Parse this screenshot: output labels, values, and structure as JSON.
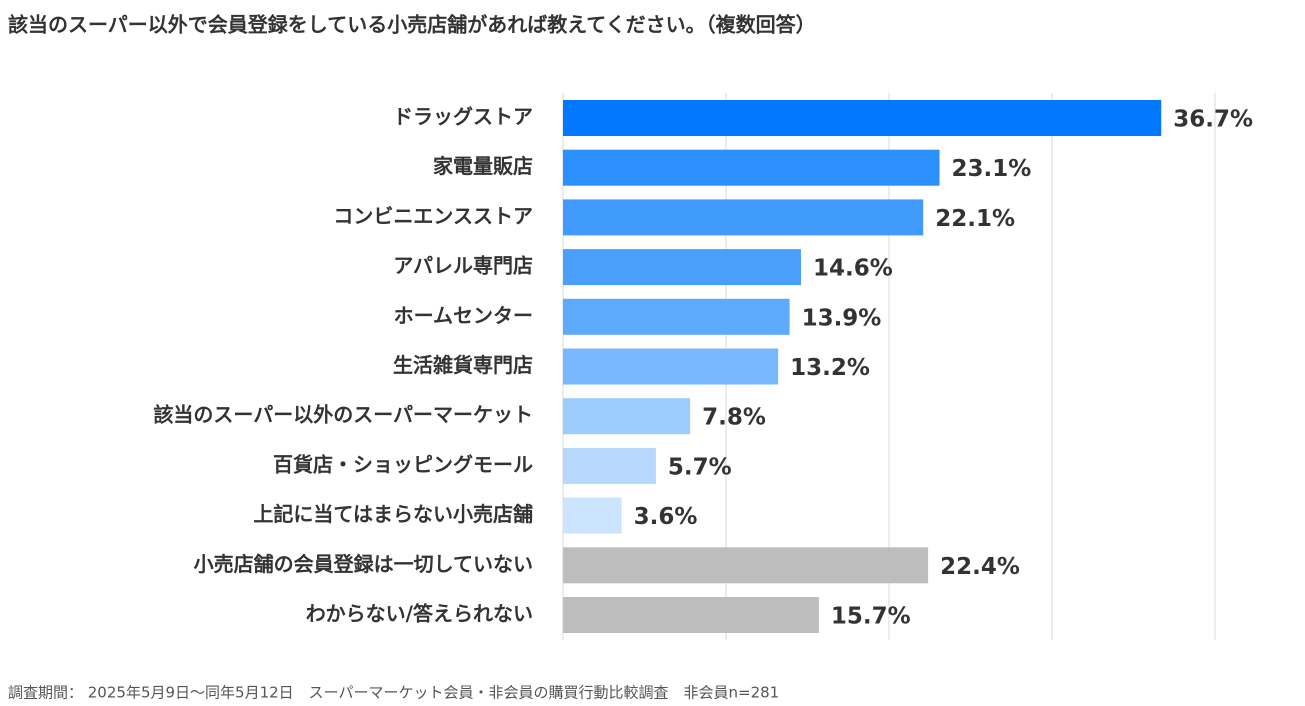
{
  "chart_data": {
    "type": "bar",
    "orientation": "horizontal",
    "title": "該当のスーパー以外で会員登録をしている小売店舗があれば教えてください。（複数回答）",
    "categories": [
      "ドラッグストア",
      "家電量販店",
      "コンビニエンスストア",
      "アパレル専門店",
      "ホームセンター",
      "生活雑貨専門店",
      "該当のスーパー以外のスーパーマーケット",
      "百貨店・ショッピングモール",
      "上記に当てはまらない小売店舗",
      "小売店舗の会員登録は一切していない",
      "わからない/答えられない"
    ],
    "values": [
      36.7,
      23.1,
      22.1,
      14.6,
      13.9,
      13.2,
      7.8,
      5.7,
      3.6,
      22.4,
      15.7
    ],
    "value_labels": [
      "36.7%",
      "23.1%",
      "22.1%",
      "14.6%",
      "13.9%",
      "13.2%",
      "7.8%",
      "5.7%",
      "3.6%",
      "22.4%",
      "15.7%"
    ],
    "colors": [
      "#0077fd",
      "#2b8ffc",
      "#419bfc",
      "#4a9ffb",
      "#5eaafc",
      "#79b8fc",
      "#9ccbfd",
      "#b6d8fd",
      "#cde4fe",
      "#bdbdbd",
      "#bdbdbd"
    ],
    "xlim": [
      0,
      40
    ],
    "xticks": [
      0,
      10,
      20,
      30,
      40
    ],
    "grid": true,
    "footnote": "調査期間： 2025年5月9日〜同年5月12日　スーパーマーケット会員・非会員の購買行動比較調査　非会員n=281"
  }
}
